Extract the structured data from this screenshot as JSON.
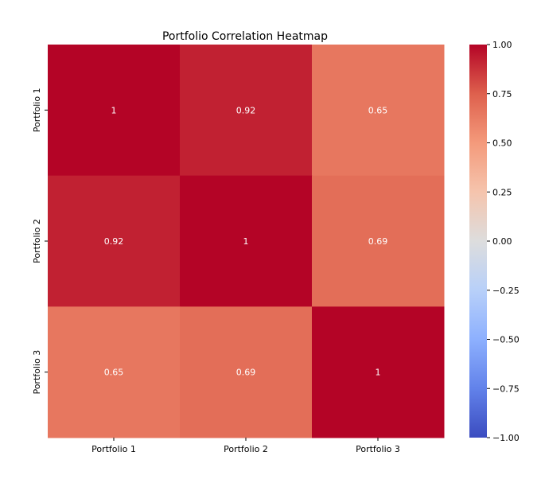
{
  "chart_data": {
    "type": "heatmap",
    "title": "Portfolio Correlation Heatmap",
    "row_labels": [
      "Portfolio 1",
      "Portfolio 2",
      "Portfolio 3"
    ],
    "column_labels": [
      "Portfolio 1",
      "Portfolio 2",
      "Portfolio 3"
    ],
    "values": [
      [
        1,
        0.92,
        0.65
      ],
      [
        0.92,
        1,
        0.69
      ],
      [
        0.65,
        0.69,
        1
      ]
    ],
    "cell_labels": [
      [
        "1",
        "0.92",
        "0.65"
      ],
      [
        "0.92",
        "1",
        "0.69"
      ],
      [
        "0.65",
        "0.69",
        "1"
      ]
    ],
    "colormap": "coolwarm",
    "vmin": -1.0,
    "vmax": 1.0,
    "colorbar_ticks": [
      1.0,
      0.75,
      0.5,
      0.25,
      0.0,
      -0.25,
      -0.5,
      -0.75,
      -1.0
    ],
    "colorbar_tick_labels": [
      "1.00",
      "0.75",
      "0.50",
      "0.25",
      "0.00",
      "−0.25",
      "−0.50",
      "−0.75",
      "−1.00"
    ],
    "colorbar_stops": [
      "#3b4cc0",
      "#b40426"
    ],
    "legend": "colorbar, right"
  }
}
